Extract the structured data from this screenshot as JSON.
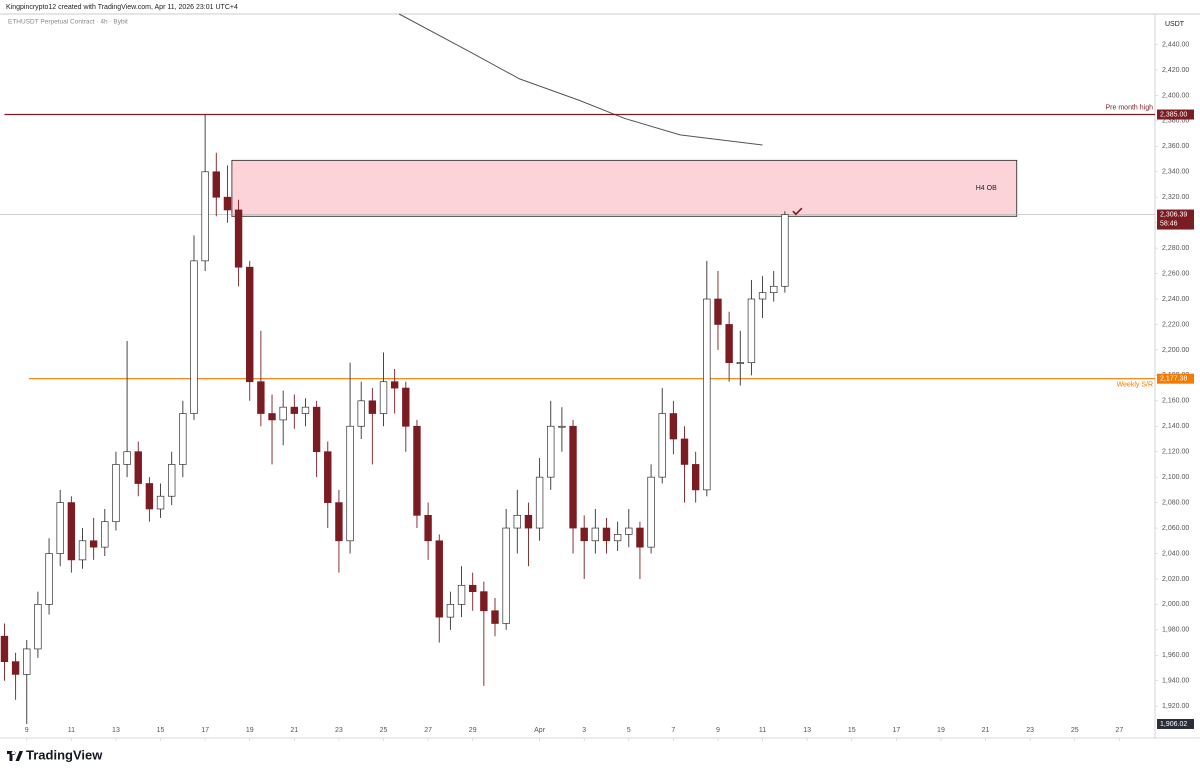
{
  "header": {
    "title": "Kingpincrypto12 created with TradingView.com, Apr 11, 2026 23:01 UTC+4",
    "subtitle": "ETHUSDT Perpetual Contract · 4h · Bybit"
  },
  "chart_data": {
    "type": "candlestick",
    "y_axis_label": "USDT",
    "x": [
      8.0,
      8.5,
      9.0,
      9.5,
      10.0,
      10.5,
      11.0,
      11.5,
      12.0,
      12.5,
      13.0,
      13.5,
      14.0,
      14.5,
      15.0,
      15.5,
      16.0,
      16.5,
      17.0,
      17.5,
      18.0,
      18.5,
      19.0,
      19.5,
      20.0,
      20.5,
      21.0,
      21.5,
      22.0,
      22.5,
      23.0,
      23.5,
      24.0,
      24.5,
      25.0,
      25.5,
      26.0,
      26.5,
      27.0,
      27.5,
      28.0,
      28.5,
      29.0,
      29.5,
      30.0,
      30.5,
      31.0,
      31.5,
      32.0,
      32.5,
      33.0,
      33.5,
      34.0,
      34.5,
      35.0,
      35.5,
      36.0,
      36.5,
      37.0,
      37.5,
      38.0,
      38.5,
      39.0,
      39.5,
      40.0,
      40.5,
      41.0,
      41.5,
      42.0,
      42.5,
      43.0
    ],
    "open": [
      1975,
      1955,
      1945,
      1965,
      2000,
      2040,
      2080,
      2035,
      2050,
      2045,
      2065,
      2110,
      2120,
      2095,
      2075,
      2085,
      2110,
      2150,
      2270,
      2340,
      2320,
      2310,
      2265,
      2175,
      2150,
      2145,
      2155,
      2150,
      2155,
      2120,
      2080,
      2050,
      2140,
      2160,
      2150,
      2175,
      2170,
      2140,
      2070,
      2050,
      1990,
      2000,
      2015,
      2010,
      1995,
      1985,
      2060,
      2070,
      2060,
      2100,
      2140,
      2140,
      2060,
      2050,
      2060,
      2050,
      2055,
      2060,
      2045,
      2100,
      2150,
      2130,
      2110,
      2090,
      2240,
      2220,
      2190,
      2190,
      2240,
      2245,
      2250
    ],
    "high": [
      1985,
      1962,
      1972,
      2010,
      2052,
      2090,
      2085,
      2060,
      2068,
      2075,
      2120,
      2207,
      2128,
      2100,
      2095,
      2120,
      2160,
      2290,
      2385,
      2355,
      2345,
      2318,
      2270,
      2215,
      2165,
      2168,
      2165,
      2162,
      2160,
      2128,
      2090,
      2190,
      2175,
      2170,
      2198,
      2185,
      2175,
      2145,
      2080,
      2055,
      2010,
      2030,
      2025,
      2018,
      2005,
      2075,
      2090,
      2080,
      2115,
      2160,
      2155,
      2145,
      2070,
      2075,
      2068,
      2065,
      2075,
      2065,
      2110,
      2170,
      2160,
      2140,
      2120,
      2270,
      2262,
      2230,
      2215,
      2255,
      2258,
      2262,
      2309
    ],
    "low": [
      1940,
      1925,
      1906.02,
      1958,
      1992,
      2030,
      2025,
      2028,
      2035,
      2038,
      2058,
      2100,
      2085,
      2065,
      2068,
      2078,
      2100,
      2145,
      2262,
      2305,
      2300,
      2250,
      2160,
      2140,
      2110,
      2125,
      2138,
      2140,
      2100,
      2060,
      2025,
      2040,
      2130,
      2110,
      2140,
      2150,
      2120,
      2060,
      2035,
      1970,
      1980,
      1990,
      1995,
      1936,
      1975,
      1980,
      2040,
      2030,
      2050,
      2090,
      2120,
      2040,
      2020,
      2040,
      2040,
      2042,
      2045,
      2020,
      2040,
      2095,
      2118,
      2080,
      2080,
      2085,
      2200,
      2175,
      2172,
      2180,
      2225,
      2238,
      2245
    ],
    "close": [
      1955,
      1945,
      1965,
      2000,
      2040,
      2080,
      2035,
      2050,
      2045,
      2065,
      2110,
      2120,
      2095,
      2075,
      2085,
      2110,
      2150,
      2270,
      2340,
      2320,
      2310,
      2265,
      2175,
      2150,
      2145,
      2155,
      2150,
      2155,
      2120,
      2080,
      2050,
      2140,
      2160,
      2150,
      2175,
      2170,
      2140,
      2070,
      2050,
      1990,
      2000,
      2015,
      2010,
      1995,
      1985,
      2060,
      2070,
      2060,
      2100,
      2140,
      2140,
      2060,
      2050,
      2060,
      2050,
      2055,
      2060,
      2045,
      2100,
      2150,
      2130,
      2110,
      2090,
      2240,
      2220,
      2190,
      2190,
      2240,
      2245,
      2250,
      2306.39
    ],
    "up_color": "#ffffff",
    "down_color": "#7b1c22",
    "outline_color": "#333333",
    "xlim": [
      7.8,
      59.6
    ],
    "xticks": [
      9,
      11,
      13,
      15,
      17,
      19,
      21,
      23,
      25,
      27,
      29,
      {
        "value": 32,
        "label": "Apr"
      },
      {
        "value": 34,
        "label": "3"
      },
      {
        "value": 36,
        "label": "5"
      },
      {
        "value": 38,
        "label": "7"
      },
      {
        "value": 40,
        "label": "9"
      },
      {
        "value": 42,
        "label": "11"
      },
      {
        "value": 44,
        "label": "13"
      },
      {
        "value": 46,
        "label": "15"
      },
      {
        "value": 48,
        "label": "17"
      },
      {
        "value": 50,
        "label": "19"
      },
      {
        "value": 52,
        "label": "21"
      },
      {
        "value": 54,
        "label": "23"
      },
      {
        "value": 56,
        "label": "25"
      },
      {
        "value": 58,
        "label": "27"
      }
    ],
    "ylim": [
      1895,
      2464
    ],
    "yticks": [
      {
        "value": 1920,
        "label": "1,920.00"
      },
      {
        "value": 1940,
        "label": "1,940.00"
      },
      {
        "value": 1960,
        "label": "1,960.00"
      },
      {
        "value": 1980,
        "label": "1,980.00"
      },
      {
        "value": 2000,
        "label": "2,000.00"
      },
      {
        "value": 2020,
        "label": "2,020.00"
      },
      {
        "value": 2040,
        "label": "2,040.00"
      },
      {
        "value": 2060,
        "label": "2,060.00"
      },
      {
        "value": 2080,
        "label": "2,080.00"
      },
      {
        "value": 2100,
        "label": "2,100.00"
      },
      {
        "value": 2120,
        "label": "2,120.00"
      },
      {
        "value": 2140,
        "label": "2,140.00"
      },
      {
        "value": 2160,
        "label": "2,160.00"
      },
      {
        "value": 2180,
        "label": "2,180.00"
      },
      {
        "value": 2200,
        "label": "2,200.00"
      },
      {
        "value": 2220,
        "label": "2,220.00"
      },
      {
        "value": 2240,
        "label": "2,240.00"
      },
      {
        "value": 2260,
        "label": "2,260.00"
      },
      {
        "value": 2280,
        "label": "2,280.00"
      },
      {
        "value": 2300,
        "label": "2,300.00"
      },
      {
        "value": 2320,
        "label": "2,320.00"
      },
      {
        "value": 2340,
        "label": "2,340.00"
      },
      {
        "value": 2360,
        "label": "2,360.00"
      },
      {
        "value": 2380,
        "label": "2,380.00"
      },
      {
        "value": 2400,
        "label": "2,400.00"
      },
      {
        "value": 2420,
        "label": "2,420.00"
      },
      {
        "value": 2440,
        "label": "2,440.00"
      }
    ],
    "grid": false,
    "ma": {
      "x": [
        25.7,
        28.8,
        31.1,
        33.8,
        35.8,
        38.3,
        42.0
      ],
      "values": [
        2464,
        2435,
        2413,
        2396,
        2382,
        2369,
        2361
      ],
      "color": "#555555"
    },
    "zone": {
      "label": "H4 OB",
      "x": [
        18.2,
        53.4
      ],
      "y": [
        2305,
        2349
      ],
      "color": "#fbd3d8"
    },
    "levels": [
      {
        "name": "Pre month high",
        "value": 2385,
        "value_label": "2,385.00",
        "x_start": 8.0,
        "color": "#7b1c22"
      },
      {
        "name": "Weekly S/R",
        "value": 2177.38,
        "value_label": "2,177.38",
        "x_start": 9.1,
        "color": "#f57c00"
      },
      {
        "value": 2306.39,
        "value_label": "2,306.39",
        "countdown": "58:46",
        "x_start": 7.8,
        "color": "#b0b0b0",
        "label_color": "#7b1c22"
      }
    ],
    "low_label": {
      "value": 1906.02,
      "label": "1,906.02"
    }
  },
  "footer": {
    "brand": "TradingView"
  }
}
